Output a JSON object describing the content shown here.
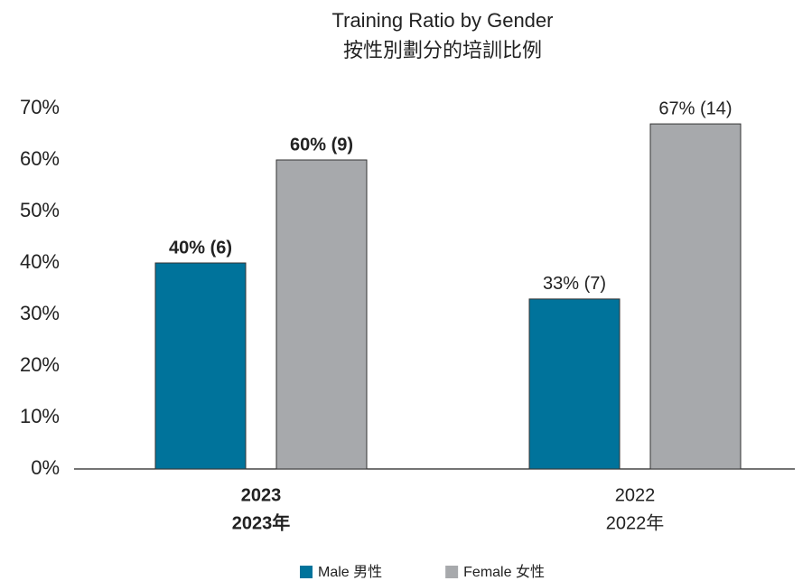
{
  "chart_data": {
    "type": "bar",
    "title": "Training Ratio by Gender",
    "subtitle": "按性別劃分的培訓比例",
    "categories": [
      "2023",
      "2022"
    ],
    "category_sublabels": [
      "2023年",
      "2022年"
    ],
    "category_bold": [
      true,
      false
    ],
    "series": [
      {
        "name": "Male 男性",
        "color": "#00739b",
        "values": [
          40,
          33
        ],
        "value_labels": [
          "40% (6)",
          "33% (7)"
        ]
      },
      {
        "name": "Female 女性",
        "color": "#a7a9ac",
        "values": [
          60,
          67
        ],
        "value_labels": [
          "60% (9)",
          "67% (14)"
        ]
      }
    ],
    "ylim": [
      0,
      70
    ],
    "yticks": [
      {
        "value": 0,
        "label": "0%"
      },
      {
        "value": 10,
        "label": "10%"
      },
      {
        "value": 20,
        "label": "20%"
      },
      {
        "value": 30,
        "label": "30%"
      },
      {
        "value": 40,
        "label": "40%"
      },
      {
        "value": 50,
        "label": "50%"
      },
      {
        "value": 60,
        "label": "60%"
      },
      {
        "value": 70,
        "label": "70%"
      }
    ],
    "legend": "bottom"
  }
}
